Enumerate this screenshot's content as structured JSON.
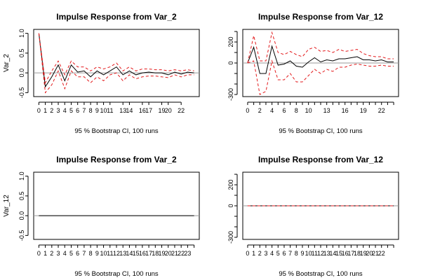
{
  "chart_data": [
    {
      "type": "line",
      "title": "Impulse Response from Var_2",
      "ylabel": "Var_2",
      "xlabel": "95 % Bootstrap CI,  100 runs",
      "ylim": [
        -0.6,
        1.1
      ],
      "yticks": [
        -0.5,
        0.0,
        0.5,
        1.0
      ],
      "ytick_labels": [
        "-0.5",
        "0.0",
        "0.5",
        "1.0"
      ],
      "xticks": [
        0,
        1,
        2,
        3,
        4,
        5,
        6,
        7,
        8,
        9,
        10,
        11,
        13,
        14,
        16,
        17,
        19,
        20,
        22
      ],
      "xlim": [
        -0.8,
        24.8
      ],
      "grid": false,
      "series": [
        {
          "role": "response",
          "color": "#000000",
          "values": [
            1.0,
            -0.35,
            -0.1,
            0.2,
            -0.2,
            0.2,
            0.02,
            0.05,
            -0.1,
            0.05,
            -0.05,
            0.05,
            0.15,
            -0.05,
            0.05,
            -0.05,
            0.0,
            0.02,
            0.0,
            0.0,
            -0.05,
            0.02,
            -0.03,
            0.02,
            0.0
          ]
        },
        {
          "role": "upper-ci",
          "color": "#e31a1c",
          "values": [
            1.0,
            -0.25,
            0.05,
            0.3,
            -0.05,
            0.3,
            0.15,
            0.15,
            0.05,
            0.15,
            0.1,
            0.15,
            0.25,
            0.05,
            0.15,
            0.05,
            0.1,
            0.1,
            0.08,
            0.08,
            0.05,
            0.08,
            0.05,
            0.08,
            0.05
          ]
        },
        {
          "role": "lower-ci",
          "color": "#e31a1c",
          "values": [
            1.0,
            -0.5,
            -0.3,
            0.05,
            -0.4,
            0.05,
            -0.1,
            -0.1,
            -0.25,
            -0.1,
            -0.2,
            -0.05,
            0.0,
            -0.2,
            -0.05,
            -0.15,
            -0.1,
            -0.08,
            -0.08,
            -0.1,
            -0.12,
            -0.05,
            -0.1,
            -0.05,
            -0.05
          ]
        }
      ]
    },
    {
      "type": "line",
      "title": "Impulse Response from Var_12",
      "ylabel": "",
      "xlabel": "95 % Bootstrap CI,  100 runs",
      "ylim": [
        -320,
        320
      ],
      "yticks": [
        -300,
        -200,
        -100,
        0,
        100,
        200,
        300
      ],
      "ytick_labels": [
        "-300",
        "",
        "",
        "0",
        "",
        "200",
        ""
      ],
      "xticks": [
        0,
        1,
        2,
        3,
        4,
        5,
        6,
        7,
        8,
        9,
        10,
        11,
        12,
        13,
        14,
        15,
        16,
        17,
        18,
        19,
        20,
        21,
        22,
        23,
        24
      ],
      "xtick_labels": [
        "0",
        "",
        "2",
        "",
        "4",
        "",
        "6",
        "",
        "8",
        "",
        "10",
        "",
        "",
        "13",
        "",
        "",
        "16",
        "",
        "",
        "19",
        "",
        "",
        "22",
        "",
        ""
      ],
      "xlim": [
        -0.8,
        24.8
      ],
      "grid": false,
      "series": [
        {
          "role": "response",
          "color": "#000000",
          "values": [
            0,
            150,
            -100,
            -100,
            160,
            -20,
            -10,
            20,
            -30,
            -40,
            10,
            50,
            10,
            30,
            20,
            40,
            40,
            50,
            60,
            30,
            30,
            20,
            30,
            10,
            10
          ]
        },
        {
          "role": "upper-ci",
          "color": "#e31a1c",
          "values": [
            0,
            260,
            20,
            20,
            290,
            100,
            80,
            110,
            80,
            60,
            130,
            150,
            110,
            120,
            100,
            130,
            110,
            120,
            130,
            90,
            70,
            60,
            60,
            40,
            40
          ]
        },
        {
          "role": "lower-ci",
          "color": "#e31a1c",
          "values": [
            0,
            20,
            -300,
            -270,
            20,
            -160,
            -160,
            -100,
            -180,
            -180,
            -120,
            -60,
            -100,
            -60,
            -80,
            -40,
            -40,
            -20,
            -10,
            -20,
            -30,
            -30,
            -20,
            -30,
            -30
          ]
        }
      ]
    },
    {
      "type": "line",
      "title": "Impulse Response from Var_2",
      "ylabel": "Var_12",
      "xlabel": "95 % Bootstrap CI,  100 runs",
      "ylim": [
        -0.6,
        1.1
      ],
      "yticks": [
        -0.5,
        0.0,
        0.5,
        1.0
      ],
      "ytick_labels": [
        "-0.5",
        "0.0",
        "0.5",
        "1.0"
      ],
      "xticks": [
        0,
        1,
        2,
        3,
        4,
        5,
        6,
        7,
        8,
        9,
        10,
        11,
        12,
        13,
        14,
        15,
        16,
        17,
        18,
        19,
        20,
        21,
        22,
        23,
        24
      ],
      "xtick_labels": [
        "0",
        "1",
        "2",
        "3",
        "4",
        "5",
        "6",
        "7",
        "8",
        "9",
        "10",
        "11",
        "12",
        "13",
        "14",
        "15",
        "16",
        "17",
        "18",
        "19",
        "20",
        "21",
        "22",
        "23",
        ""
      ],
      "xlim": [
        -0.8,
        24.8
      ],
      "grid": false,
      "series": [
        {
          "role": "response",
          "color": "#000000",
          "values": [
            0,
            0,
            0,
            0,
            0,
            0,
            0,
            0,
            0,
            0,
            0,
            0,
            0,
            0,
            0,
            0,
            0,
            0,
            0,
            0,
            0,
            0,
            0,
            0,
            0
          ]
        }
      ]
    },
    {
      "type": "line",
      "title": "Impulse Response from Var_12",
      "ylabel": "",
      "xlabel": "95 % Bootstrap CI,  100 runs",
      "ylim": [
        -320,
        320
      ],
      "yticks": [
        -300,
        -200,
        -100,
        0,
        100,
        200,
        300
      ],
      "ytick_labels": [
        "-300",
        "",
        "",
        "0",
        "",
        "200",
        ""
      ],
      "xticks": [
        0,
        1,
        2,
        3,
        4,
        5,
        6,
        7,
        8,
        9,
        10,
        11,
        12,
        13,
        14,
        15,
        16,
        17,
        18,
        19,
        20,
        21,
        22,
        23,
        24
      ],
      "xtick_labels": [
        "0",
        "1",
        "2",
        "3",
        "4",
        "5",
        "6",
        "7",
        "8",
        "9",
        "10",
        "11",
        "12",
        "13",
        "14",
        "15",
        "16",
        "17",
        "18",
        "19",
        "20",
        "21",
        "22",
        "",
        ""
      ],
      "xlim": [
        -0.8,
        24.8
      ],
      "grid": false,
      "series": [
        {
          "role": "response",
          "color": "#000000",
          "values": [
            0,
            0,
            0,
            0,
            0,
            0,
            0,
            0,
            0,
            0,
            0,
            0,
            0,
            0,
            0,
            0,
            0,
            0,
            0,
            0,
            0,
            0,
            0,
            0,
            0
          ]
        },
        {
          "role": "upper-ci",
          "color": "#e31a1c",
          "values": [
            0,
            0,
            0,
            0,
            0,
            0,
            0,
            0,
            0,
            0,
            0,
            0,
            0,
            0,
            0,
            0,
            0,
            0,
            0,
            0,
            0,
            0,
            0,
            0,
            0
          ]
        },
        {
          "role": "lower-ci",
          "color": "#e31a1c",
          "values": [
            0,
            0,
            0,
            0,
            0,
            0,
            0,
            0,
            0,
            0,
            0,
            0,
            0,
            0,
            0,
            0,
            0,
            0,
            0,
            0,
            0,
            0,
            0,
            0,
            0
          ]
        }
      ]
    }
  ]
}
